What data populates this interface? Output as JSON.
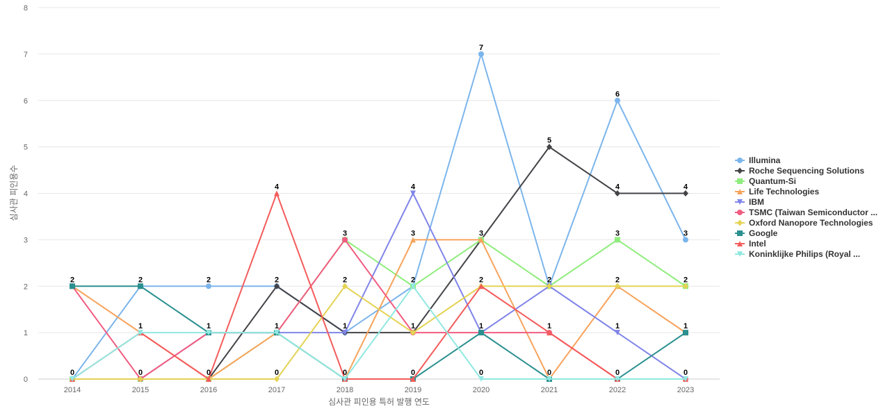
{
  "chart_data": {
    "type": "line",
    "xlabel": "심사관 피인용 특허 발행 연도",
    "ylabel": "심사관 피인용수",
    "x": [
      "2014",
      "2015",
      "2016",
      "2017",
      "2018",
      "2019",
      "2020",
      "2021",
      "2022",
      "2023"
    ],
    "ylim": [
      0,
      8
    ],
    "yticks": [
      0,
      1,
      2,
      3,
      4,
      5,
      6,
      7,
      8
    ],
    "grid": true,
    "legend_position": "right",
    "series": [
      {
        "name": "Illumina",
        "color": "#7cb5ec",
        "marker": "circle",
        "values": [
          0,
          2,
          2,
          2,
          1,
          2,
          7,
          2,
          6,
          3
        ]
      },
      {
        "name": "Roche Sequencing Solutions",
        "color": "#434348",
        "marker": "diamond",
        "values": [
          0,
          0,
          0,
          2,
          1,
          1,
          3,
          5,
          4,
          4
        ]
      },
      {
        "name": "Quantum-Si",
        "color": "#90ed7d",
        "marker": "square",
        "values": [
          0,
          0,
          0,
          1,
          3,
          2,
          3,
          2,
          3,
          2
        ]
      },
      {
        "name": "Life Technologies",
        "color": "#f7a35c",
        "marker": "triangle",
        "values": [
          2,
          1,
          0,
          1,
          0,
          3,
          3,
          0,
          2,
          1
        ]
      },
      {
        "name": "IBM",
        "color": "#8085e9",
        "marker": "triangle-down",
        "values": [
          0,
          0,
          1,
          1,
          1,
          4,
          1,
          2,
          1,
          0
        ]
      },
      {
        "name": "TSMC (Taiwan Semiconductor ...",
        "color": "#f15c80",
        "marker": "circle",
        "values": [
          2,
          0,
          1,
          1,
          3,
          1,
          1,
          1,
          0,
          0
        ]
      },
      {
        "name": "Oxford Nanopore Technologies",
        "color": "#e4d354",
        "marker": "diamond",
        "values": [
          0,
          0,
          0,
          0,
          2,
          1,
          2,
          2,
          2,
          2
        ]
      },
      {
        "name": "Google",
        "color": "#2b908f",
        "marker": "square",
        "values": [
          2,
          2,
          1,
          1,
          0,
          0,
          1,
          0,
          0,
          1
        ]
      },
      {
        "name": "Intel",
        "color": "#f45b5b",
        "marker": "triangle",
        "values": [
          0,
          1,
          0,
          4,
          0,
          0,
          2,
          1,
          0,
          0
        ]
      },
      {
        "name": "Koninklijke Philips (Royal ...",
        "color": "#91e8e1",
        "marker": "triangle-down",
        "values": [
          0,
          1,
          1,
          1,
          0,
          2,
          0,
          0,
          0,
          0
        ]
      }
    ],
    "data_labels": [
      {
        "x": "2014",
        "value": 2,
        "text": "2"
      },
      {
        "x": "2014",
        "value": 0,
        "text": "0"
      },
      {
        "x": "2015",
        "value": 2,
        "text": "2"
      },
      {
        "x": "2015",
        "value": 1,
        "text": "1"
      },
      {
        "x": "2015",
        "value": 0,
        "text": "0"
      },
      {
        "x": "2016",
        "value": 2,
        "text": "2"
      },
      {
        "x": "2016",
        "value": 1,
        "text": "1"
      },
      {
        "x": "2016",
        "value": 0,
        "text": "0"
      },
      {
        "x": "2017",
        "value": 4,
        "text": "4"
      },
      {
        "x": "2017",
        "value": 2,
        "text": "2"
      },
      {
        "x": "2017",
        "value": 1,
        "text": "1"
      },
      {
        "x": "2017",
        "value": 0,
        "text": "0"
      },
      {
        "x": "2018",
        "value": 3,
        "text": "3"
      },
      {
        "x": "2018",
        "value": 2,
        "text": "2"
      },
      {
        "x": "2018",
        "value": 1,
        "text": "1"
      },
      {
        "x": "2018",
        "value": 0,
        "text": "0"
      },
      {
        "x": "2019",
        "value": 4,
        "text": "4"
      },
      {
        "x": "2019",
        "value": 3,
        "text": "3"
      },
      {
        "x": "2019",
        "value": 2,
        "text": "2"
      },
      {
        "x": "2019",
        "value": 1,
        "text": "1"
      },
      {
        "x": "2019",
        "value": 0,
        "text": "0"
      },
      {
        "x": "2020",
        "value": 7,
        "text": "7"
      },
      {
        "x": "2020",
        "value": 3,
        "text": "3"
      },
      {
        "x": "2020",
        "value": 2,
        "text": "2"
      },
      {
        "x": "2020",
        "value": 1,
        "text": "1"
      },
      {
        "x": "2020",
        "value": 0,
        "text": "0"
      },
      {
        "x": "2021",
        "value": 5,
        "text": "5"
      },
      {
        "x": "2021",
        "value": 2,
        "text": "2"
      },
      {
        "x": "2021",
        "value": 1,
        "text": "1"
      },
      {
        "x": "2021",
        "value": 0,
        "text": "0"
      },
      {
        "x": "2022",
        "value": 6,
        "text": "6"
      },
      {
        "x": "2022",
        "value": 4,
        "text": "4"
      },
      {
        "x": "2022",
        "value": 3,
        "text": "3"
      },
      {
        "x": "2022",
        "value": 2,
        "text": "2"
      },
      {
        "x": "2022",
        "value": 1,
        "text": "1"
      },
      {
        "x": "2022",
        "value": 0,
        "text": "0"
      },
      {
        "x": "2023",
        "value": 4,
        "text": "4"
      },
      {
        "x": "2023",
        "value": 3,
        "text": "3"
      },
      {
        "x": "2023",
        "value": 2,
        "text": "2"
      },
      {
        "x": "2023",
        "value": 1,
        "text": "1"
      },
      {
        "x": "2023",
        "value": 0,
        "text": "0"
      }
    ]
  }
}
